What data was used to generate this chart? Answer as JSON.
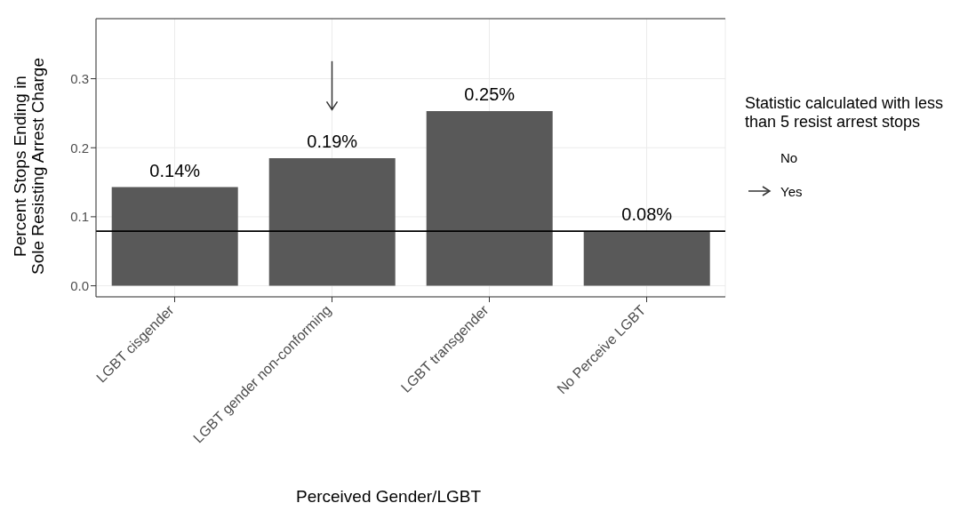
{
  "chart_data": {
    "type": "bar",
    "xlabel": "Perceived Gender/LGBT",
    "ylabel": "Percent Stops Ending in\nSole Resisting Arrest Charge",
    "legend_title": "Statistic calculated with less than 5 resist arrest stops",
    "categories": [
      "LGBT cisgender",
      "LGBT gender non-conforming",
      "LGBT transgender",
      "No Perceive LGBT"
    ],
    "series": [
      {
        "color": "#595959",
        "values": [
          0.143,
          0.185,
          0.253,
          0.079
        ],
        "value_labels": [
          "0.14%",
          "0.19%",
          "0.25%",
          "0.08%"
        ]
      },
      {
        "type": "scatter",
        "name": "No",
        "values": [
          null,
          null,
          null,
          null
        ]
      },
      {
        "type": "scatter",
        "name": "Yes",
        "color": "#333333",
        "values": [
          null,
          0.261,
          null,
          null
        ]
      }
    ],
    "ylim": [
      -0.016,
      0.387
    ],
    "yticks": [
      {
        "value": 0,
        "label": "0.0"
      },
      0.1,
      0.2,
      0.3
    ],
    "ref_lines": [
      {
        "axis": "y",
        "value": 0.079,
        "color": "#000000"
      }
    ],
    "grid": true,
    "legend": "right"
  }
}
